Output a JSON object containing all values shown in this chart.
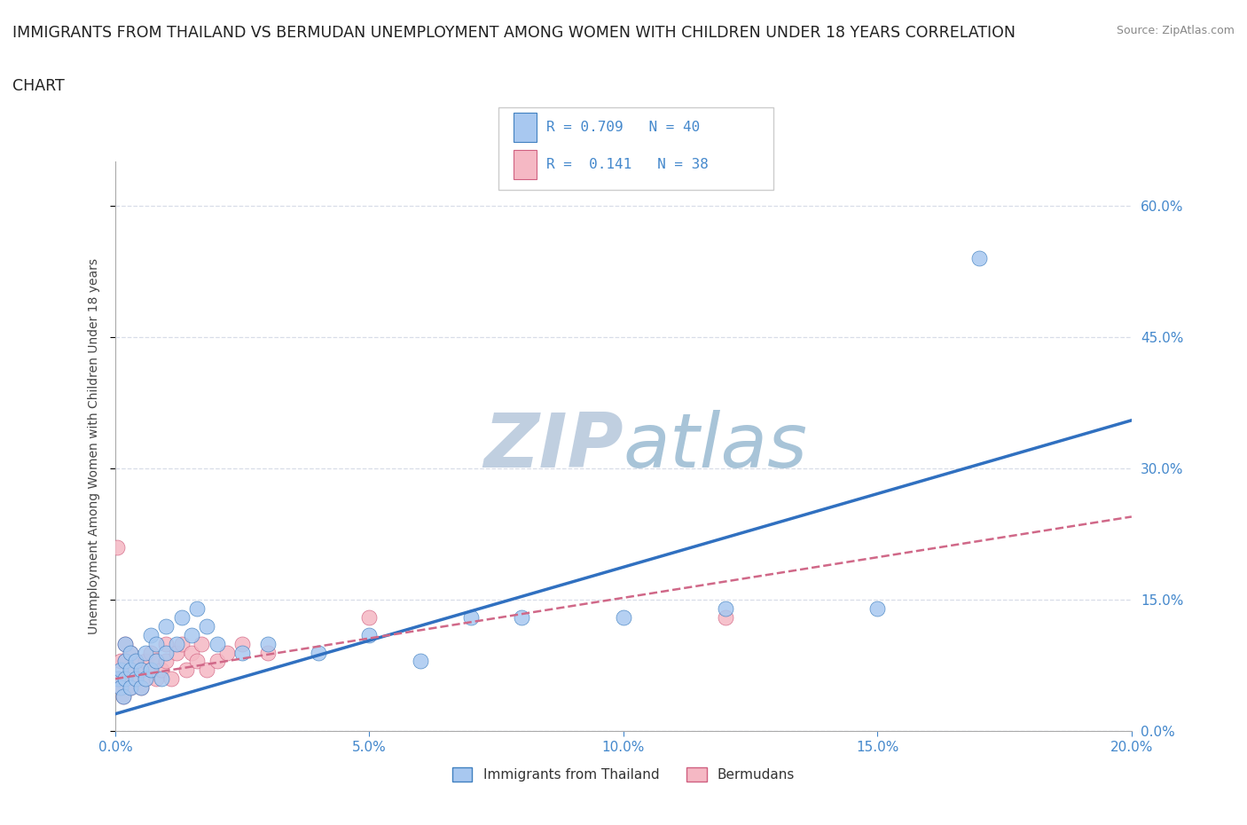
{
  "title_line1": "IMMIGRANTS FROM THAILAND VS BERMUDAN UNEMPLOYMENT AMONG WOMEN WITH CHILDREN UNDER 18 YEARS CORRELATION",
  "title_line2": "CHART",
  "source_text": "Source: ZipAtlas.com",
  "ylabel": "Unemployment Among Women with Children Under 18 years",
  "xlim": [
    0.0,
    0.2
  ],
  "ylim": [
    0.0,
    0.65
  ],
  "yticks": [
    0.0,
    0.15,
    0.3,
    0.45,
    0.6
  ],
  "xticks": [
    0.0,
    0.05,
    0.1,
    0.15,
    0.2
  ],
  "legend_label1": "Immigrants from Thailand",
  "legend_label2": "Bermudans",
  "R1": 0.709,
  "N1": 40,
  "R2": 0.141,
  "N2": 38,
  "color_thailand": "#a8c8f0",
  "color_bermuda": "#f5b8c4",
  "color_edge_thailand": "#4080c0",
  "color_edge_bermuda": "#d06080",
  "color_line_thailand": "#3070c0",
  "color_line_bermuda": "#d06888",
  "color_title": "#222222",
  "color_axis_ticks": "#4488cc",
  "watermark_color": "#ccd8e8",
  "background_color": "#ffffff",
  "grid_color": "#d8dde8",
  "thai_x": [
    0.0005,
    0.001,
    0.001,
    0.0015,
    0.002,
    0.002,
    0.002,
    0.003,
    0.003,
    0.003,
    0.004,
    0.004,
    0.005,
    0.005,
    0.006,
    0.006,
    0.007,
    0.007,
    0.008,
    0.008,
    0.009,
    0.01,
    0.01,
    0.012,
    0.013,
    0.015,
    0.016,
    0.018,
    0.02,
    0.025,
    0.03,
    0.04,
    0.05,
    0.06,
    0.07,
    0.08,
    0.1,
    0.12,
    0.15,
    0.17
  ],
  "thai_y": [
    0.06,
    0.05,
    0.07,
    0.04,
    0.06,
    0.08,
    0.1,
    0.05,
    0.07,
    0.09,
    0.06,
    0.08,
    0.05,
    0.07,
    0.06,
    0.09,
    0.07,
    0.11,
    0.08,
    0.1,
    0.06,
    0.09,
    0.12,
    0.1,
    0.13,
    0.11,
    0.14,
    0.12,
    0.1,
    0.09,
    0.1,
    0.09,
    0.11,
    0.08,
    0.13,
    0.13,
    0.13,
    0.14,
    0.14,
    0.54
  ],
  "berm_x": [
    0.0003,
    0.0005,
    0.001,
    0.001,
    0.0015,
    0.002,
    0.002,
    0.002,
    0.003,
    0.003,
    0.003,
    0.004,
    0.004,
    0.005,
    0.005,
    0.006,
    0.006,
    0.007,
    0.007,
    0.008,
    0.008,
    0.009,
    0.01,
    0.01,
    0.011,
    0.012,
    0.013,
    0.014,
    0.015,
    0.016,
    0.017,
    0.018,
    0.02,
    0.022,
    0.025,
    0.03,
    0.05,
    0.12
  ],
  "berm_y": [
    0.21,
    0.06,
    0.05,
    0.08,
    0.04,
    0.06,
    0.08,
    0.1,
    0.05,
    0.07,
    0.09,
    0.06,
    0.08,
    0.05,
    0.07,
    0.06,
    0.08,
    0.07,
    0.09,
    0.06,
    0.08,
    0.07,
    0.08,
    0.1,
    0.06,
    0.09,
    0.1,
    0.07,
    0.09,
    0.08,
    0.1,
    0.07,
    0.08,
    0.09,
    0.1,
    0.09,
    0.13,
    0.13
  ],
  "regline_thai_x0": 0.0,
  "regline_thai_y0": 0.02,
  "regline_thai_x1": 0.2,
  "regline_thai_y1": 0.355,
  "regline_berm_x0": 0.0,
  "regline_berm_y0": 0.06,
  "regline_berm_x1": 0.2,
  "regline_berm_y1": 0.245
}
